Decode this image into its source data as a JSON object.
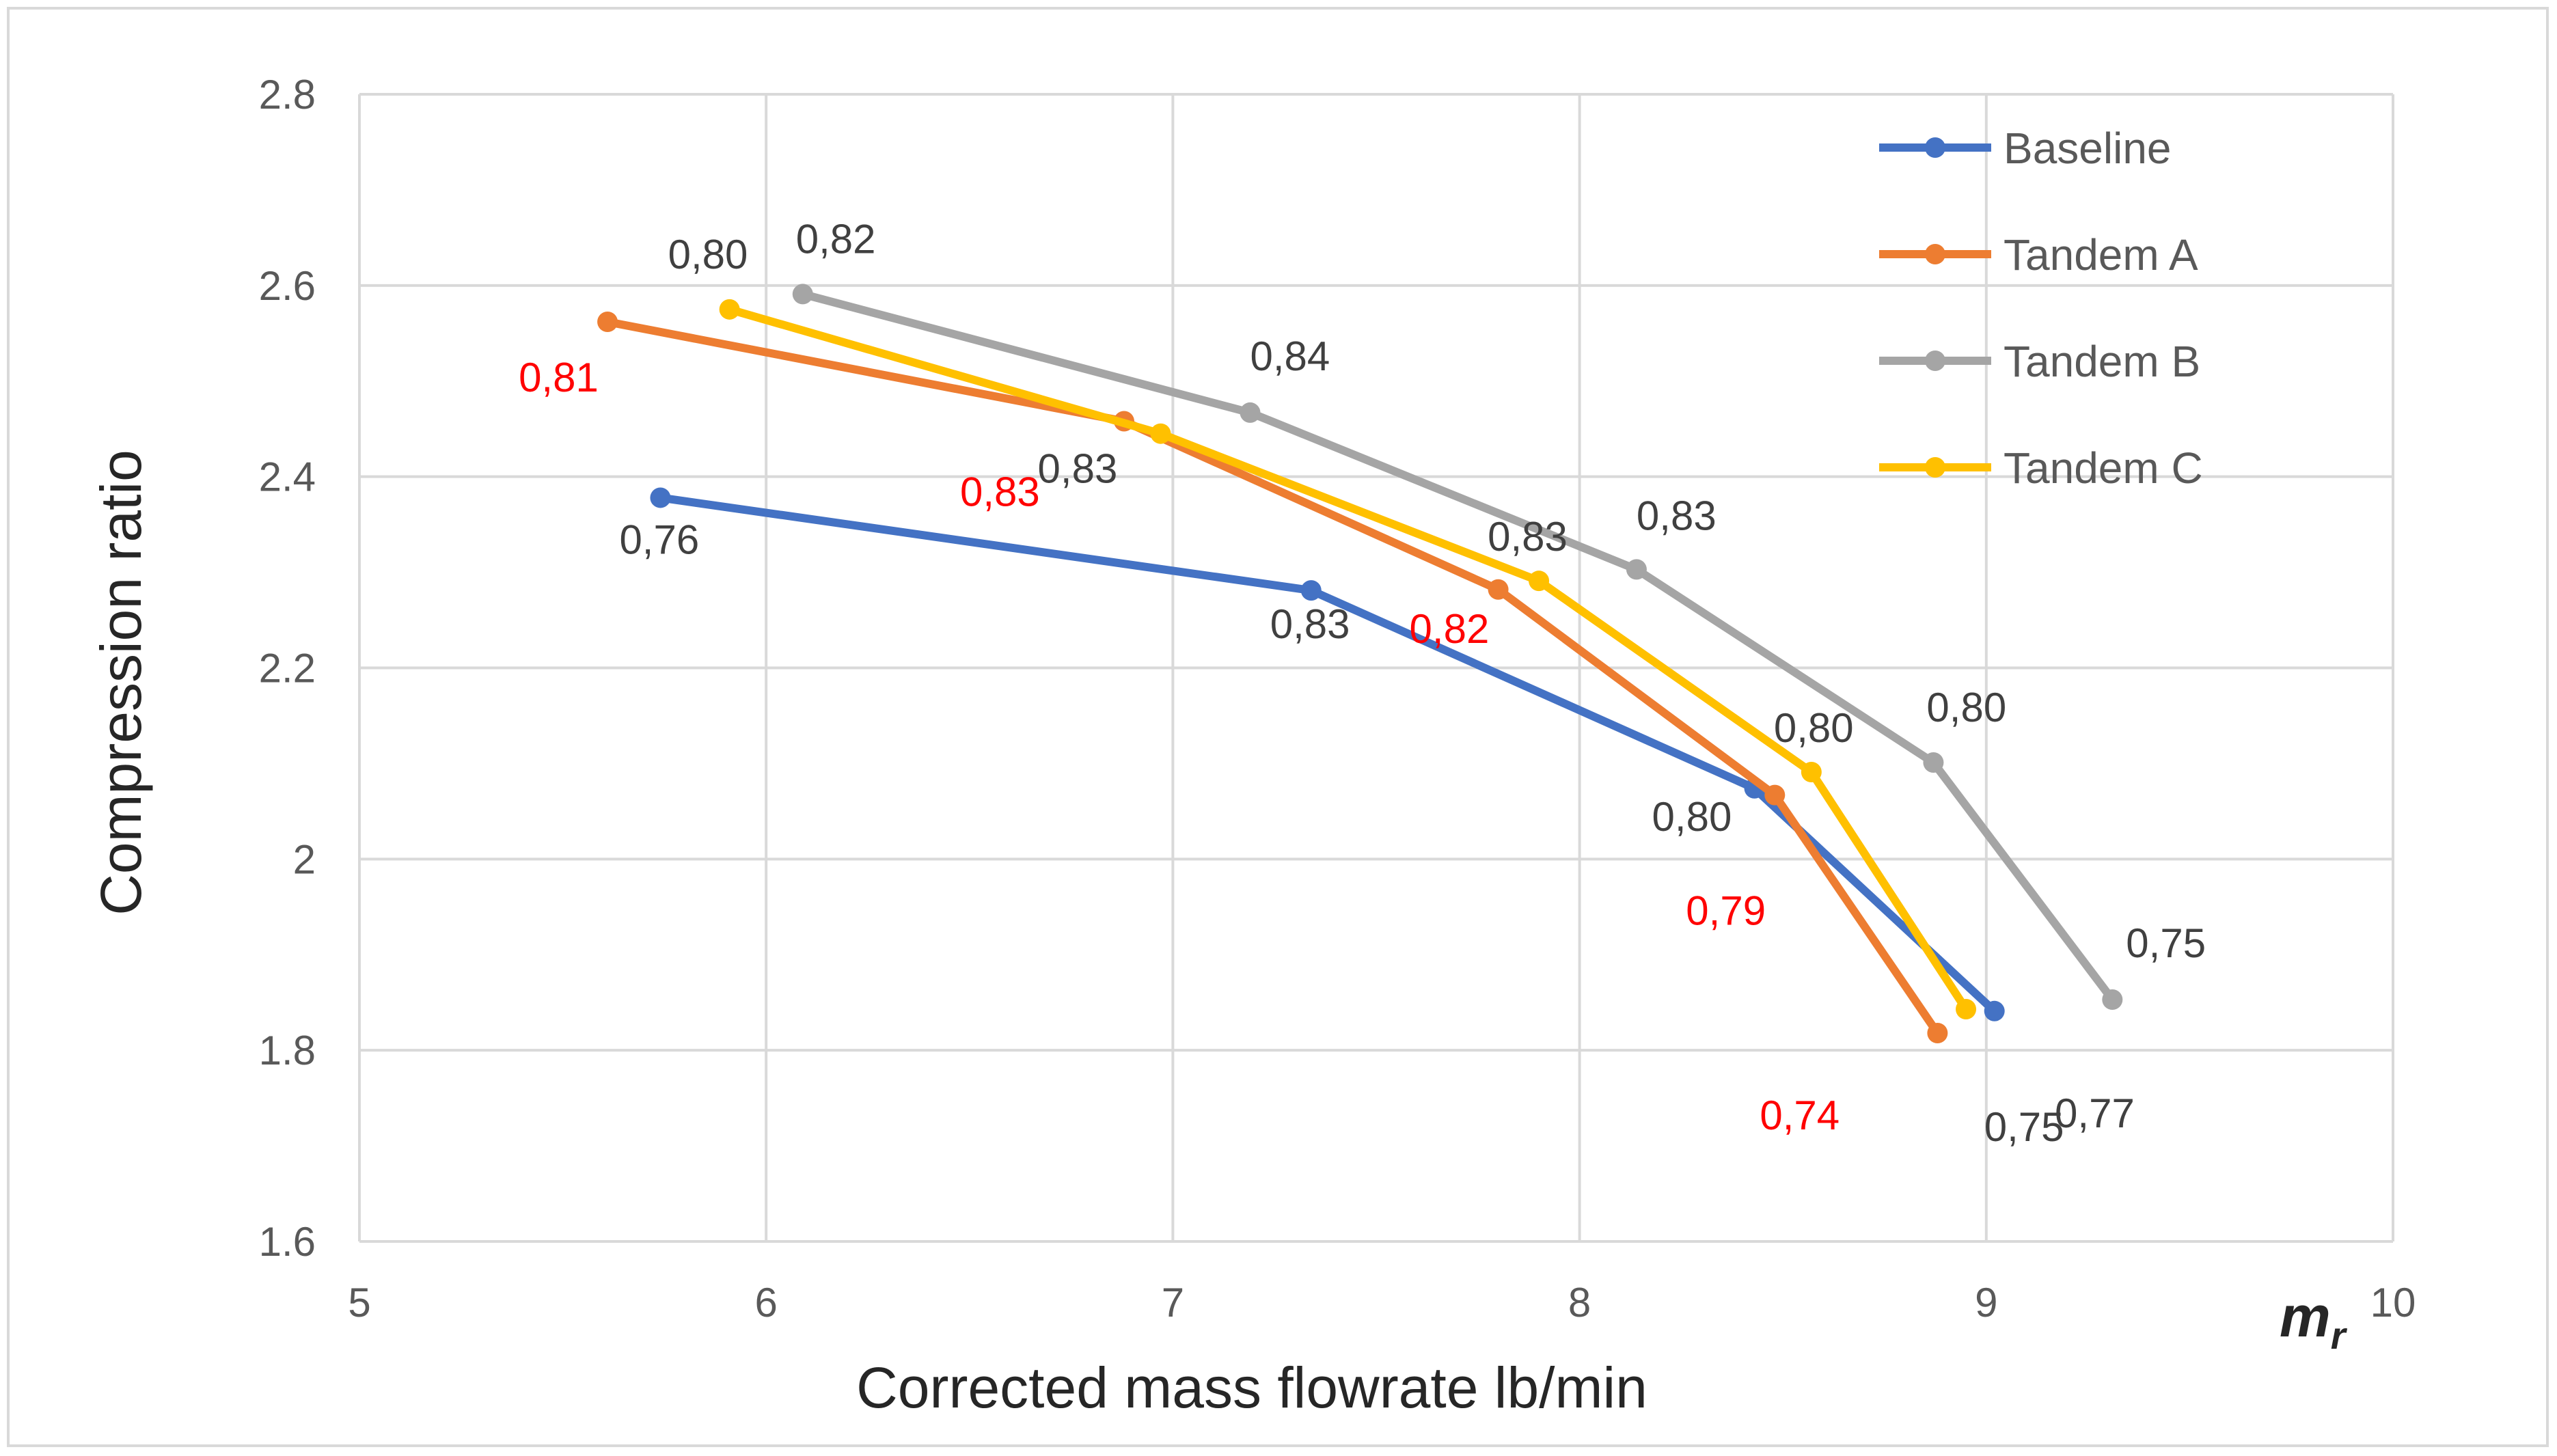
{
  "chart_data": {
    "type": "line",
    "title": "",
    "xlabel": "Corrected mass flowrate lb/min",
    "ylabel": "Compression ratio",
    "axis_end_symbol": "m",
    "axis_end_symbol_subscript": "r",
    "xlim": [
      5,
      10
    ],
    "ylim": [
      1.6,
      2.8
    ],
    "x_ticks": [
      5,
      6,
      7,
      8,
      9,
      10
    ],
    "x_tick_labels": [
      "5",
      "6",
      "7",
      "8",
      "9",
      "10"
    ],
    "y_ticks": [
      1.6,
      1.8,
      2.0,
      2.2,
      2.4,
      2.6,
      2.8
    ],
    "y_tick_labels": [
      "1.6",
      "1.8",
      "2",
      "2.2",
      "2.4",
      "2.6",
      "2.8"
    ],
    "grid": true,
    "legend_position": "top-right",
    "series": [
      {
        "name": "Baseline",
        "color": "#4472C4",
        "x": [
          5.74,
          7.34,
          8.43,
          9.02
        ],
        "y": [
          2.378,
          2.281,
          2.074,
          1.841
        ],
        "labels": [
          "0,76",
          "0,83",
          "0,80",
          "0,75"
        ],
        "label_color": "#404040"
      },
      {
        "name": "Tandem A",
        "color": "#ED7D31",
        "x": [
          5.61,
          6.88,
          7.8,
          8.48,
          8.88
        ],
        "y": [
          2.562,
          2.458,
          2.282,
          2.067,
          1.818
        ],
        "labels": [
          "0,81",
          "0,83",
          "0,82",
          "0,79",
          "0,74"
        ],
        "label_color": "#FF0000"
      },
      {
        "name": "Tandem B",
        "color": "#A5A5A5",
        "x": [
          6.09,
          7.19,
          8.14,
          8.87,
          9.31
        ],
        "y": [
          2.591,
          2.467,
          2.303,
          2.101,
          1.853
        ],
        "labels": [
          "0,82",
          "0,84",
          "0,83",
          "0,80",
          "0,75"
        ],
        "label_color": "#404040"
      },
      {
        "name": "Tandem C",
        "color": "#FFC000",
        "x": [
          5.91,
          6.97,
          7.9,
          8.57,
          8.95
        ],
        "y": [
          2.575,
          2.445,
          2.291,
          2.091,
          1.843
        ],
        "labels": [
          "0,80",
          "0,83",
          "0,83",
          "0,80",
          "0,77"
        ],
        "label_color": "#404040"
      }
    ]
  }
}
